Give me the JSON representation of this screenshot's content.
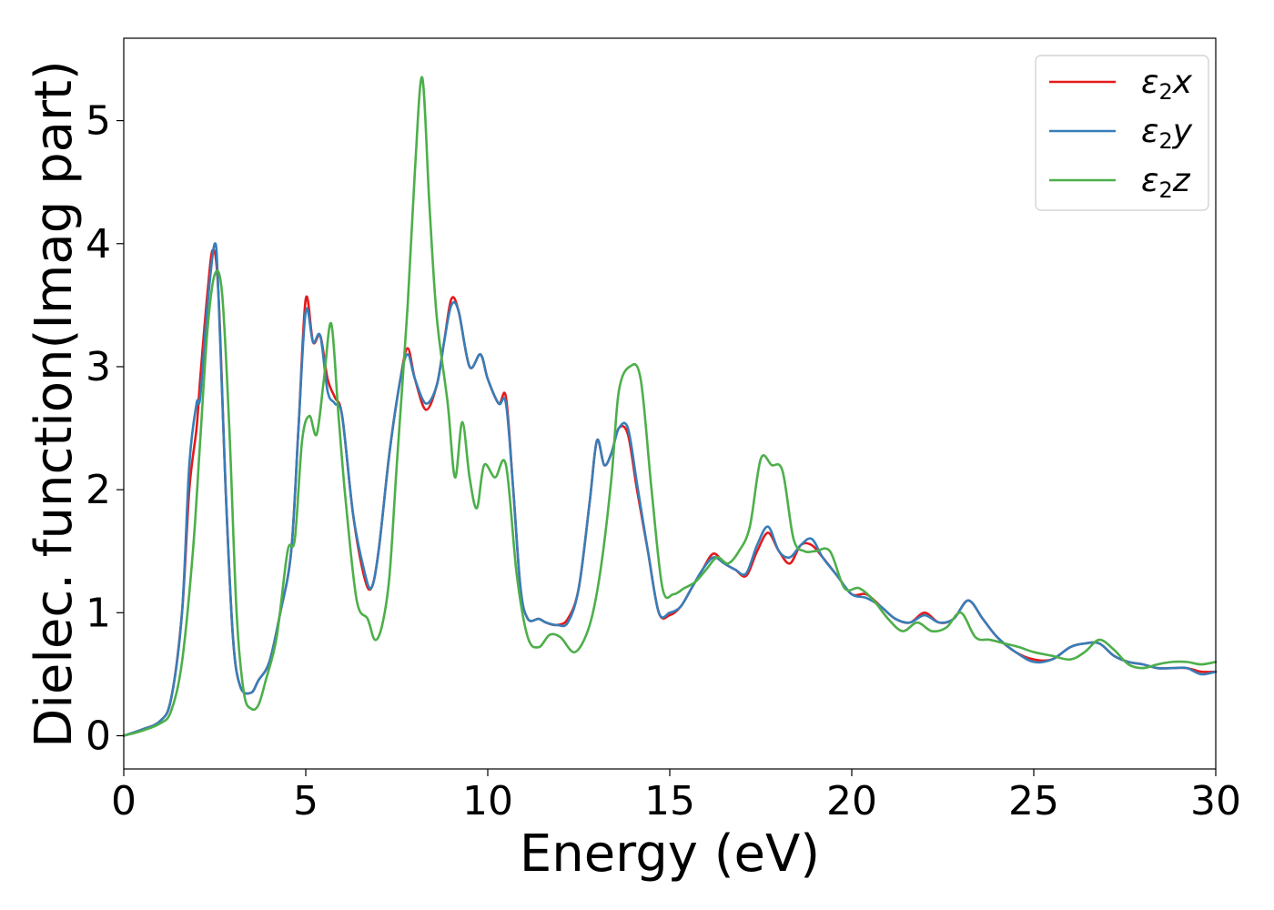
{
  "chart_data": {
    "type": "line",
    "title": "",
    "xlabel": "Energy (eV)",
    "ylabel": "Dielec. function(Imag part)",
    "xlim": [
      0,
      30
    ],
    "ylim": [
      -0.27,
      5.67
    ],
    "xticks": [
      "0",
      "5",
      "10",
      "15",
      "20",
      "25",
      "30"
    ],
    "yticks": [
      "0",
      "1",
      "2",
      "3",
      "4",
      "5"
    ],
    "grid": false,
    "legend_position": "top-right",
    "series": [
      {
        "name": "ε2x",
        "color": "#e41a1c",
        "x": [
          0,
          0.5,
          1.0,
          1.3,
          1.6,
          1.8,
          2.0,
          2.1,
          2.3,
          2.45,
          2.6,
          2.8,
          3.0,
          3.2,
          3.5,
          3.7,
          4.0,
          4.3,
          4.6,
          4.8,
          5.0,
          5.2,
          5.4,
          5.6,
          5.8,
          6.0,
          6.3,
          6.6,
          6.8,
          7.0,
          7.3,
          7.6,
          7.8,
          8.0,
          8.3,
          8.6,
          8.8,
          9.0,
          9.2,
          9.5,
          9.8,
          10.0,
          10.3,
          10.5,
          10.7,
          10.9,
          11.1,
          11.4,
          11.6,
          11.9,
          12.2,
          12.5,
          12.8,
          13.0,
          13.2,
          13.4,
          13.6,
          13.85,
          14.1,
          14.4,
          14.7,
          15.0,
          15.3,
          15.6,
          15.9,
          16.2,
          16.5,
          16.8,
          17.1,
          17.4,
          17.7,
          18.0,
          18.3,
          18.6,
          18.9,
          19.2,
          19.6,
          20.0,
          20.4,
          20.8,
          21.2,
          21.6,
          22.0,
          22.4,
          22.8,
          23.2,
          23.6,
          24.0,
          24.5,
          25.0,
          25.5,
          26.0,
          26.4,
          26.8,
          27.2,
          27.6,
          28.0,
          28.4,
          28.8,
          29.2,
          29.6,
          30.0
        ],
        "values": [
          0,
          0.05,
          0.12,
          0.3,
          1.0,
          2.0,
          2.5,
          2.9,
          3.6,
          3.95,
          3.6,
          2.0,
          0.8,
          0.4,
          0.35,
          0.45,
          0.6,
          1.0,
          1.5,
          2.5,
          3.55,
          3.2,
          3.25,
          2.9,
          2.75,
          2.6,
          1.8,
          1.3,
          1.2,
          1.5,
          2.3,
          2.9,
          3.15,
          2.9,
          2.65,
          2.85,
          3.2,
          3.55,
          3.45,
          3.0,
          3.1,
          2.9,
          2.7,
          2.75,
          2.0,
          1.2,
          0.95,
          0.95,
          0.92,
          0.9,
          0.95,
          1.2,
          1.9,
          2.4,
          2.2,
          2.3,
          2.5,
          2.45,
          2.0,
          1.5,
          1.0,
          0.98,
          1.05,
          1.2,
          1.35,
          1.48,
          1.4,
          1.35,
          1.3,
          1.5,
          1.65,
          1.5,
          1.4,
          1.55,
          1.55,
          1.45,
          1.3,
          1.15,
          1.15,
          1.05,
          0.95,
          0.92,
          1.0,
          0.92,
          0.95,
          1.1,
          0.95,
          0.8,
          0.68,
          0.62,
          0.62,
          0.72,
          0.75,
          0.75,
          0.65,
          0.6,
          0.58,
          0.55,
          0.55,
          0.55,
          0.52,
          0.52
        ]
      },
      {
        "name": "ε2y",
        "color": "#377eb8",
        "x": [
          0,
          0.5,
          1.0,
          1.3,
          1.6,
          1.8,
          2.0,
          2.1,
          2.3,
          2.5,
          2.6,
          2.8,
          3.0,
          3.2,
          3.5,
          3.7,
          4.0,
          4.3,
          4.6,
          4.8,
          5.0,
          5.2,
          5.4,
          5.6,
          5.8,
          6.0,
          6.3,
          6.6,
          6.8,
          7.0,
          7.3,
          7.6,
          7.8,
          8.0,
          8.3,
          8.6,
          8.8,
          9.0,
          9.2,
          9.5,
          9.8,
          10.0,
          10.3,
          10.5,
          10.7,
          10.9,
          11.1,
          11.4,
          11.6,
          11.9,
          12.2,
          12.5,
          12.8,
          13.0,
          13.2,
          13.4,
          13.6,
          13.85,
          14.1,
          14.4,
          14.7,
          15.0,
          15.3,
          15.6,
          15.9,
          16.2,
          16.5,
          16.8,
          17.1,
          17.4,
          17.7,
          18.0,
          18.3,
          18.6,
          18.9,
          19.2,
          19.6,
          20.0,
          20.4,
          20.8,
          21.2,
          21.6,
          22.0,
          22.4,
          22.8,
          23.2,
          23.6,
          24.0,
          24.5,
          25.0,
          25.5,
          26.0,
          26.4,
          26.8,
          27.2,
          27.6,
          28.0,
          28.4,
          28.8,
          29.2,
          29.6,
          30.0
        ],
        "values": [
          0,
          0.05,
          0.12,
          0.3,
          1.0,
          2.2,
          2.7,
          2.75,
          3.5,
          4.0,
          3.6,
          2.0,
          0.8,
          0.4,
          0.35,
          0.45,
          0.6,
          1.0,
          1.5,
          2.5,
          3.45,
          3.2,
          3.25,
          2.8,
          2.7,
          2.6,
          1.8,
          1.35,
          1.2,
          1.5,
          2.3,
          2.9,
          3.1,
          2.9,
          2.7,
          2.85,
          3.2,
          3.5,
          3.45,
          3.0,
          3.1,
          2.9,
          2.7,
          2.7,
          2.0,
          1.2,
          0.95,
          0.95,
          0.92,
          0.9,
          0.92,
          1.2,
          1.9,
          2.4,
          2.2,
          2.3,
          2.5,
          2.5,
          2.05,
          1.5,
          1.0,
          1.0,
          1.05,
          1.2,
          1.35,
          1.45,
          1.4,
          1.35,
          1.32,
          1.55,
          1.7,
          1.5,
          1.45,
          1.55,
          1.6,
          1.45,
          1.3,
          1.15,
          1.12,
          1.05,
          0.95,
          0.92,
          0.98,
          0.92,
          0.95,
          1.1,
          0.95,
          0.8,
          0.68,
          0.6,
          0.62,
          0.72,
          0.75,
          0.75,
          0.65,
          0.6,
          0.58,
          0.55,
          0.55,
          0.55,
          0.5,
          0.52
        ]
      },
      {
        "name": "ε2z",
        "color": "#4daf4a",
        "x": [
          0,
          0.5,
          1.0,
          1.3,
          1.6,
          1.9,
          2.1,
          2.3,
          2.5,
          2.7,
          2.9,
          3.1,
          3.3,
          3.5,
          3.7,
          3.9,
          4.2,
          4.5,
          4.7,
          4.9,
          5.1,
          5.3,
          5.5,
          5.7,
          5.9,
          6.1,
          6.4,
          6.7,
          6.9,
          7.1,
          7.3,
          7.5,
          7.8,
          8.0,
          8.2,
          8.4,
          8.6,
          8.9,
          9.1,
          9.3,
          9.5,
          9.7,
          9.9,
          10.2,
          10.5,
          10.8,
          11.1,
          11.4,
          11.7,
          12.0,
          12.4,
          12.8,
          13.1,
          13.4,
          13.6,
          13.9,
          14.2,
          14.5,
          14.8,
          15.1,
          15.4,
          15.7,
          16.0,
          16.3,
          16.6,
          16.9,
          17.2,
          17.5,
          17.8,
          18.1,
          18.4,
          18.7,
          19.0,
          19.4,
          19.8,
          20.2,
          20.6,
          21.0,
          21.4,
          21.8,
          22.2,
          22.6,
          23.0,
          23.4,
          23.8,
          24.2,
          24.6,
          25.0,
          25.5,
          26.0,
          26.4,
          26.8,
          27.2,
          27.6,
          28.0,
          28.4,
          28.8,
          29.2,
          29.6,
          30.0
        ],
        "values": [
          0,
          0.04,
          0.1,
          0.2,
          0.6,
          1.5,
          2.4,
          3.3,
          3.75,
          3.6,
          2.5,
          1.0,
          0.35,
          0.22,
          0.25,
          0.45,
          0.8,
          1.5,
          1.6,
          2.4,
          2.6,
          2.45,
          2.9,
          3.35,
          2.6,
          1.9,
          1.1,
          0.95,
          0.78,
          0.9,
          1.3,
          2.2,
          3.5,
          4.6,
          5.35,
          4.3,
          3.4,
          2.7,
          2.1,
          2.55,
          2.1,
          1.85,
          2.2,
          2.1,
          2.2,
          1.3,
          0.8,
          0.72,
          0.82,
          0.8,
          0.68,
          0.9,
          1.35,
          2.1,
          2.8,
          3.0,
          2.9,
          2.0,
          1.2,
          1.15,
          1.2,
          1.25,
          1.35,
          1.45,
          1.4,
          1.5,
          1.7,
          2.25,
          2.2,
          2.15,
          1.6,
          1.5,
          1.5,
          1.5,
          1.2,
          1.2,
          1.1,
          0.95,
          0.85,
          0.92,
          0.85,
          0.88,
          1.0,
          0.8,
          0.78,
          0.75,
          0.72,
          0.68,
          0.65,
          0.62,
          0.68,
          0.78,
          0.7,
          0.58,
          0.55,
          0.58,
          0.6,
          0.6,
          0.58,
          0.6
        ]
      }
    ]
  }
}
